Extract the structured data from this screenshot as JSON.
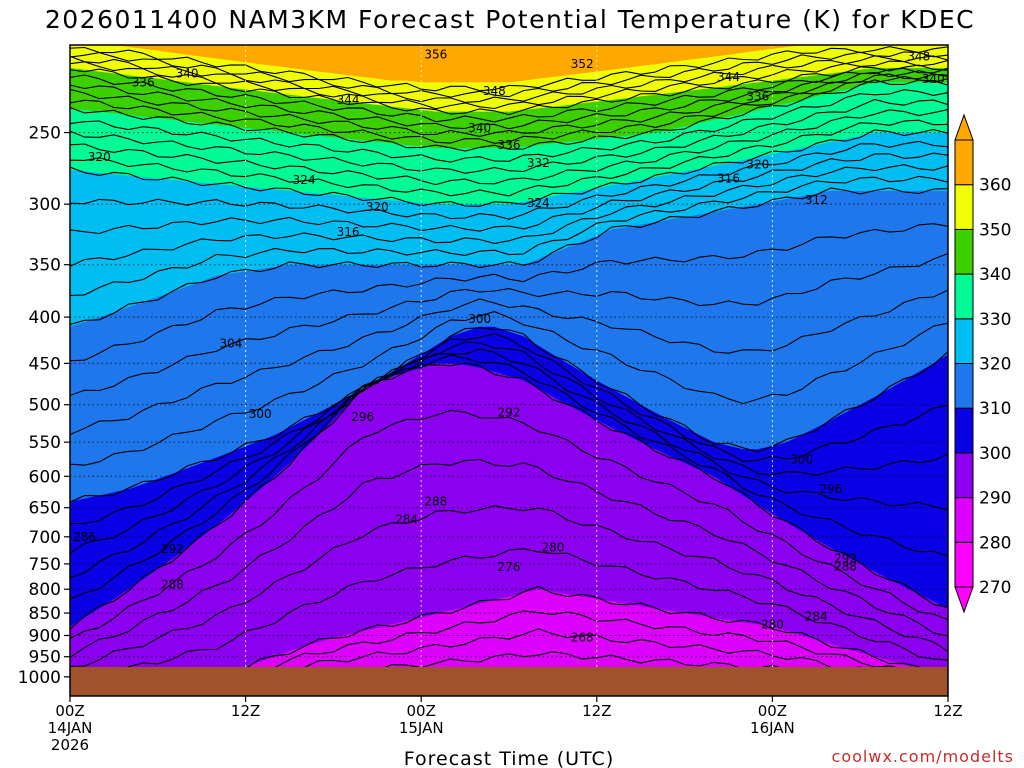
{
  "chart_data": {
    "type": "time-height cross section",
    "title": "2026011400 NAM3KM Forecast Potential Temperature (K) for KDEC",
    "xlabel": "Forecast Time (UTC)",
    "ylabel": "",
    "credit": "coolwx.com/modelts",
    "x_range_hours": [
      0,
      60
    ],
    "x_ticks": [
      {
        "hour": 0,
        "line1": "00Z",
        "line2": "14JAN",
        "line3": "2026"
      },
      {
        "hour": 12,
        "line1": "12Z",
        "line2": "",
        "line3": ""
      },
      {
        "hour": 24,
        "line1": "00Z",
        "line2": "15JAN",
        "line3": ""
      },
      {
        "hour": 36,
        "line1": "12Z",
        "line2": "",
        "line3": ""
      },
      {
        "hour": 48,
        "line1": "00Z",
        "line2": "16JAN",
        "line3": ""
      },
      {
        "hour": 60,
        "line1": "12Z",
        "line2": "",
        "line3": ""
      }
    ],
    "y_range_hpa": [
      1050,
      200
    ],
    "y_ticks": [
      "250",
      "300",
      "350",
      "400",
      "450",
      "500",
      "550",
      "600",
      "650",
      "700",
      "750",
      "800",
      "850",
      "900",
      "950",
      "1000"
    ],
    "colorbar": {
      "levels": [
        270,
        280,
        290,
        300,
        310,
        320,
        330,
        340,
        350,
        360
      ],
      "labels": [
        "270",
        "280",
        "290",
        "300",
        "310",
        "320",
        "330",
        "340",
        "350",
        "360"
      ],
      "colors": [
        "#ff00ff",
        "#dd00ff",
        "#8c00f0",
        "#0a00e6",
        "#1e78eb",
        "#00bef2",
        "#00fa96",
        "#3cd000",
        "#f0ff00",
        "#ffa800"
      ]
    },
    "ground_color": "#a0522d",
    "surface_pressure_hpa": 975,
    "contour_interval_k": 2,
    "series": [
      {
        "name": "theta_270",
        "theta": 270,
        "values": [
          1050,
          1050,
          1050,
          1050,
          1050,
          1050,
          1050,
          1050,
          1050,
          1050,
          1050,
          1050,
          1050,
          1050,
          1050,
          1050,
          1050,
          1050,
          1050,
          1050,
          1050,
          1050,
          1050,
          1050,
          1050,
          1050,
          1050,
          1050,
          1050,
          1050,
          1050,
          1050,
          1050,
          1050,
          1050,
          1050,
          1050,
          1050,
          1050,
          1050,
          1050,
          1050,
          1050,
          1050,
          1050,
          1050,
          1050,
          1050,
          1050,
          1050,
          1050,
          1050,
          1050,
          1050,
          1050,
          1050,
          1050,
          1050,
          1050,
          1050,
          1050
        ]
      },
      {
        "name": "theta_280",
        "theta": 280,
        "values": [
          1050,
          1045,
          1040,
          1035,
          1030,
          1025,
          1020,
          1015,
          1010,
          1005,
          1000,
          990,
          975,
          962,
          950,
          937,
          925,
          915,
          905,
          897,
          890,
          882,
          875,
          867,
          860,
          852,
          845,
          837,
          830,
          822,
          815,
          807,
          800,
          805,
          810,
          815,
          820,
          825,
          830,
          835,
          840,
          845,
          850,
          855,
          860,
          865,
          870,
          875,
          880,
          890,
          900,
          910,
          920,
          930,
          940,
          950,
          960,
          970,
          980,
          990,
          1000
        ]
      },
      {
        "name": "theta_290",
        "theta": 290,
        "values": [
          880,
          860,
          840,
          820,
          800,
          780,
          760,
          740,
          720,
          700,
          680,
          660,
          640,
          620,
          600,
          580,
          560,
          540,
          520,
          500,
          480,
          470,
          465,
          460,
          455,
          450,
          450,
          452,
          455,
          460,
          465,
          470,
          480,
          490,
          500,
          510,
          520,
          530,
          540,
          550,
          560,
          570,
          580,
          590,
          600,
          615,
          630,
          645,
          660,
          675,
          690,
          705,
          720,
          735,
          750,
          765,
          780,
          795,
          810,
          825,
          840
        ]
      },
      {
        "name": "theta_300",
        "theta": 300,
        "values": [
          640,
          635,
          630,
          625,
          620,
          612,
          604,
          596,
          588,
          580,
          572,
          564,
          556,
          548,
          540,
          530,
          520,
          510,
          500,
          490,
          480,
          470,
          460,
          450,
          440,
          430,
          420,
          415,
          410,
          410,
          415,
          420,
          430,
          440,
          450,
          460,
          470,
          480,
          490,
          500,
          510,
          520,
          530,
          540,
          550,
          555,
          560,
          560,
          555,
          550,
          540,
          530,
          520,
          510,
          500,
          490,
          480,
          470,
          460,
          450,
          440
        ]
      },
      {
        "name": "theta_310",
        "theta": 310,
        "values": [
          410,
          405,
          400,
          395,
          390,
          385,
          380,
          375,
          370,
          365,
          360,
          358,
          356,
          354,
          352,
          350,
          350,
          350,
          350,
          350,
          350,
          350,
          350,
          350,
          350,
          350,
          350,
          350,
          350,
          350,
          350,
          350,
          345,
          340,
          335,
          330,
          325,
          320,
          318,
          316,
          314,
          312,
          310,
          308,
          306,
          304,
          302,
          300,
          298,
          296,
          294,
          292,
          290,
          290,
          290,
          290,
          290,
          290,
          290,
          290,
          290
        ]
      },
      {
        "name": "theta_320",
        "theta": 320,
        "values": [
          275,
          276,
          277,
          278,
          279,
          280,
          281,
          282,
          283,
          284,
          285,
          286,
          287,
          288,
          289,
          290,
          291,
          292,
          293,
          294,
          295,
          296,
          297,
          298,
          299,
          300,
          300,
          300,
          300,
          300,
          300,
          298,
          296,
          294,
          292,
          290,
          288,
          286,
          284,
          282,
          280,
          278,
          276,
          274,
          272,
          270,
          268,
          266,
          264,
          262,
          260,
          258,
          256,
          254,
          252,
          250,
          250,
          250,
          250,
          250,
          250
        ]
      },
      {
        "name": "theta_330",
        "theta": 330,
        "values": [
          235,
          236,
          237,
          238,
          239,
          240,
          241,
          242,
          243,
          244,
          245,
          246,
          247,
          248,
          249,
          250,
          251,
          252,
          253,
          254,
          255,
          256,
          257,
          258,
          259,
          260,
          260,
          260,
          260,
          260,
          260,
          259,
          258,
          257,
          256,
          255,
          254,
          253,
          252,
          251,
          250,
          248,
          246,
          244,
          242,
          240,
          238,
          236,
          234,
          232,
          230,
          228,
          226,
          224,
          222,
          220,
          220,
          220,
          220,
          220,
          220
        ]
      },
      {
        "name": "theta_340",
        "theta": 340,
        "values": [
          212,
          213,
          214,
          215,
          216,
          217,
          218,
          219,
          220,
          221,
          222,
          223,
          224,
          225,
          226,
          227,
          228,
          229,
          230,
          231,
          232,
          233,
          234,
          235,
          236,
          237,
          237,
          237,
          237,
          237,
          237,
          236,
          235,
          234,
          233,
          232,
          231,
          230,
          229,
          228,
          227,
          226,
          225,
          224,
          223,
          222,
          221,
          220,
          219,
          218,
          217,
          216,
          215,
          214,
          213,
          212,
          212,
          212,
          212,
          212,
          212
        ]
      },
      {
        "name": "theta_350",
        "theta": 350,
        "values": [
          200,
          200,
          200,
          200,
          201,
          202,
          203,
          204,
          205,
          206,
          207,
          208,
          209,
          210,
          211,
          212,
          213,
          214,
          215,
          216,
          217,
          218,
          219,
          219,
          220,
          220,
          220,
          220,
          220,
          220,
          220,
          219,
          218,
          217,
          216,
          215,
          214,
          213,
          212,
          211,
          210,
          209,
          208,
          207,
          206,
          205,
          204,
          203,
          202,
          201,
          200,
          200,
          200,
          200,
          200,
          200,
          200,
          200,
          200,
          200,
          200
        ]
      }
    ],
    "annotations": [
      {
        "text": "356",
        "hour": 25,
        "hpa": 205
      },
      {
        "text": "352",
        "hour": 35,
        "hpa": 210
      },
      {
        "text": "348",
        "hour": 58,
        "hpa": 206
      },
      {
        "text": "348",
        "hour": 29,
        "hpa": 225
      },
      {
        "text": "344",
        "hour": 45,
        "hpa": 217
      },
      {
        "text": "340",
        "hour": 59,
        "hpa": 218
      },
      {
        "text": "344",
        "hour": 19,
        "hpa": 230
      },
      {
        "text": "340",
        "hour": 8,
        "hpa": 215
      },
      {
        "text": "336",
        "hour": 5,
        "hpa": 220
      },
      {
        "text": "336",
        "hour": 47,
        "hpa": 228
      },
      {
        "text": "340",
        "hour": 28,
        "hpa": 247
      },
      {
        "text": "336",
        "hour": 30,
        "hpa": 258
      },
      {
        "text": "332",
        "hour": 32,
        "hpa": 270
      },
      {
        "text": "320",
        "hour": 2,
        "hpa": 266
      },
      {
        "text": "324",
        "hour": 16,
        "hpa": 282
      },
      {
        "text": "320",
        "hour": 21,
        "hpa": 302
      },
      {
        "text": "324",
        "hour": 32,
        "hpa": 299
      },
      {
        "text": "316",
        "hour": 19,
        "hpa": 322
      },
      {
        "text": "320",
        "hour": 47,
        "hpa": 271
      },
      {
        "text": "316",
        "hour": 45,
        "hpa": 281
      },
      {
        "text": "312",
        "hour": 51,
        "hpa": 297
      },
      {
        "text": "304",
        "hour": 11,
        "hpa": 428
      },
      {
        "text": "300",
        "hour": 28,
        "hpa": 402
      },
      {
        "text": "300",
        "hour": 13,
        "hpa": 512
      },
      {
        "text": "296",
        "hour": 20,
        "hpa": 516
      },
      {
        "text": "292",
        "hour": 30,
        "hpa": 510
      },
      {
        "text": "300",
        "hour": 50,
        "hpa": 575
      },
      {
        "text": "296",
        "hour": 52,
        "hpa": 620
      },
      {
        "text": "288",
        "hour": 25,
        "hpa": 640
      },
      {
        "text": "284",
        "hour": 23,
        "hpa": 670
      },
      {
        "text": "286",
        "hour": 1,
        "hpa": 700
      },
      {
        "text": "292",
        "hour": 7,
        "hpa": 722
      },
      {
        "text": "280",
        "hour": 33,
        "hpa": 719
      },
      {
        "text": "276",
        "hour": 30,
        "hpa": 756
      },
      {
        "text": "288",
        "hour": 7,
        "hpa": 790
      },
      {
        "text": "292",
        "hour": 53,
        "hpa": 740
      },
      {
        "text": "288",
        "hour": 53,
        "hpa": 755
      },
      {
        "text": "284",
        "hour": 51,
        "hpa": 858
      },
      {
        "text": "280",
        "hour": 48,
        "hpa": 875
      },
      {
        "text": "268",
        "hour": 35,
        "hpa": 905
      }
    ]
  }
}
